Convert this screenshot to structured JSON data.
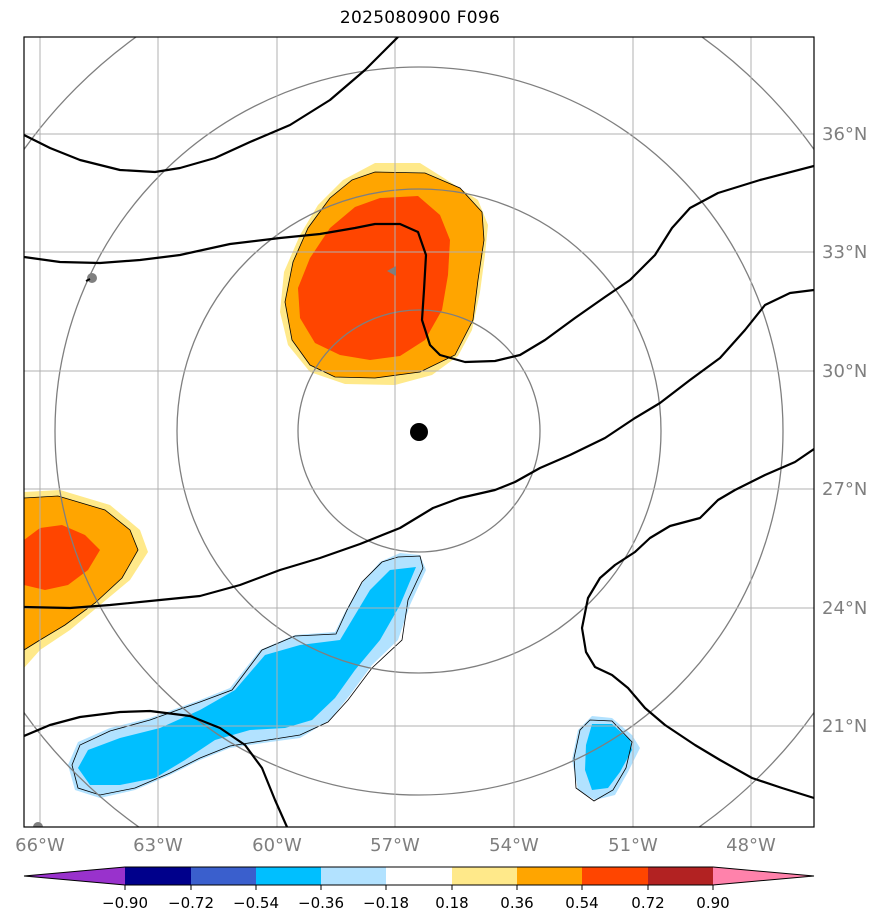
{
  "title": "2025080900 F096",
  "map": {
    "longitude_labels": [
      "66°W",
      "63°W",
      "60°W",
      "57°W",
      "54°W",
      "51°W",
      "48°W"
    ],
    "latitude_labels": [
      "36°N",
      "33°N",
      "30°N",
      "27°N",
      "24°N",
      "21°N"
    ],
    "center_marker": {
      "lon": "56.4°W",
      "lat": "28.5°N"
    }
  },
  "colorbar": {
    "tick_labels": [
      "−0.90",
      "−0.72",
      "−0.54",
      "−0.36",
      "−0.18",
      "0.18",
      "0.36",
      "0.54",
      "0.72",
      "0.90"
    ],
    "colors": [
      "#9932cc",
      "#00008b",
      "#3a5fcd",
      "#00bfff",
      "#b2e2ff",
      "#ffffff",
      "#ffe98a",
      "#ffa500",
      "#ff4500",
      "#b22222",
      "#ff82ab"
    ]
  }
}
